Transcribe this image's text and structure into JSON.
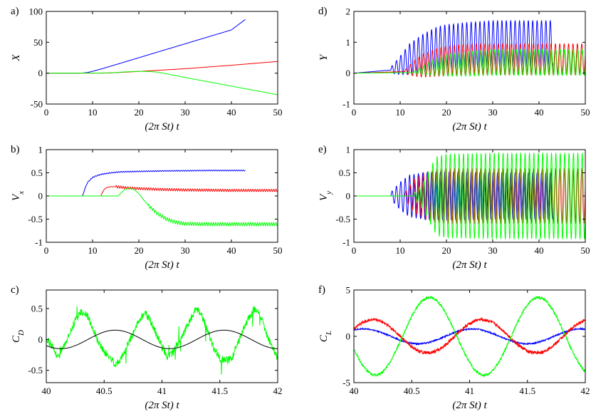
{
  "chart_data": [
    {
      "panel_label": "a)",
      "type": "line",
      "xlabel": "(2π St) t",
      "ylabel": "X",
      "xlim": [
        0,
        50
      ],
      "ylim": [
        -50,
        100
      ],
      "xticks": [
        0,
        10,
        20,
        30,
        40,
        50
      ],
      "yticks": [
        -50,
        0,
        50,
        100
      ],
      "series": [
        {
          "color": "#0000ff",
          "x": [
            0,
            7,
            8,
            9,
            10,
            12,
            14,
            16,
            18,
            20,
            25,
            30,
            35,
            40,
            43
          ],
          "y": [
            0,
            0,
            0.3,
            1.2,
            3,
            7,
            11.5,
            16,
            20.5,
            25,
            36.3,
            47.5,
            58.8,
            70,
            87
          ]
        },
        {
          "color": "#ff0000",
          "x": [
            0,
            12,
            14,
            16,
            20,
            30,
            40,
            50
          ],
          "y": [
            0,
            0,
            0.4,
            1.2,
            2.8,
            7.2,
            12.8,
            19
          ]
        },
        {
          "color": "#00ff00",
          "x": [
            0,
            10,
            14,
            16,
            18,
            20,
            22,
            24,
            26,
            30,
            35,
            40,
            45,
            50
          ],
          "y": [
            0,
            0,
            0.6,
            1.5,
            2.5,
            2.9,
            2.8,
            1.7,
            -1,
            -7,
            -14,
            -21,
            -28,
            -35
          ]
        }
      ]
    },
    {
      "panel_label": "b)",
      "type": "line",
      "xlabel": "(2π St) t",
      "ylabel": "V",
      "ylabel_sub": "x",
      "xlim": [
        0,
        50
      ],
      "ylim": [
        -1,
        1
      ],
      "xticks": [
        0,
        10,
        20,
        30,
        40,
        50
      ],
      "yticks": [
        -1,
        -0.5,
        0,
        0.5,
        1
      ],
      "series": [
        {
          "color": "#0000ff",
          "osc_amp": 0.01,
          "osc_period": 0.5,
          "osc_start": 9,
          "x": [
            0,
            7.8,
            8,
            8.5,
            9,
            10,
            11,
            12,
            14,
            16,
            20,
            25,
            30,
            35,
            43
          ],
          "y": [
            0,
            0,
            0.05,
            0.2,
            0.3,
            0.4,
            0.44,
            0.47,
            0.5,
            0.52,
            0.53,
            0.54,
            0.545,
            0.55,
            0.55
          ]
        },
        {
          "color": "#ff0000",
          "osc_amp": 0.025,
          "osc_period": 0.5,
          "osc_start": 15,
          "x": [
            0,
            11.8,
            12,
            12.5,
            13,
            14,
            15,
            16,
            18,
            20,
            25,
            30,
            40,
            50
          ],
          "y": [
            0,
            0,
            0.05,
            0.14,
            0.18,
            0.2,
            0.2,
            0.19,
            0.17,
            0.16,
            0.14,
            0.13,
            0.12,
            0.12
          ]
        },
        {
          "color": "#00ff00",
          "osc_amp": 0.035,
          "osc_period": 0.5,
          "osc_start": 22,
          "x": [
            0,
            15.5,
            16,
            17,
            18,
            19,
            20,
            21,
            22,
            24,
            26,
            28,
            30,
            35,
            40,
            45,
            50
          ],
          "y": [
            0,
            0,
            0.05,
            0.14,
            0.17,
            0.14,
            0.05,
            -0.08,
            -0.2,
            -0.38,
            -0.5,
            -0.57,
            -0.6,
            -0.61,
            -0.61,
            -0.61,
            -0.61
          ]
        }
      ]
    },
    {
      "panel_label": "c)",
      "type": "line",
      "xlabel": "(2π St) t",
      "ylabel": "C",
      "ylabel_sub": "D",
      "xlim": [
        40,
        42
      ],
      "ylim": [
        -0.7,
        0.8
      ],
      "xticks": [
        40,
        40.5,
        41,
        41.5,
        42
      ],
      "yticks": [
        -0.5,
        0,
        0.5
      ],
      "series": [
        {
          "color": "#00ff00",
          "noise_amp": 0.12,
          "x": [
            40,
            40.05,
            40.1,
            40.15,
            40.2,
            40.25,
            40.3,
            40.35,
            40.4,
            40.45,
            40.5,
            40.55,
            40.6,
            40.65,
            40.7,
            40.75,
            40.8,
            40.85,
            40.9,
            40.95,
            41,
            41.05,
            41.1,
            41.15,
            41.2,
            41.25,
            41.3,
            41.35,
            41.4,
            41.45,
            41.5,
            41.55,
            41.6,
            41.65,
            41.7,
            41.75,
            41.8,
            41.85,
            41.9,
            41.95,
            42
          ],
          "y": [
            0,
            -0.1,
            -0.3,
            -0.1,
            0.1,
            0.3,
            0.45,
            0.4,
            0.2,
            -0.05,
            -0.2,
            -0.3,
            -0.4,
            -0.3,
            -0.1,
            0.1,
            0.3,
            0.45,
            0.3,
            0.1,
            -0.1,
            -0.3,
            -0.2,
            -0.05,
            0.15,
            0.35,
            0.5,
            0.35,
            0.1,
            -0.15,
            -0.3,
            -0.35,
            -0.3,
            -0.1,
            0.15,
            0.35,
            0.5,
            0.4,
            0.1,
            -0.1,
            -0.3
          ]
        },
        {
          "color": "#000000",
          "func": "sin",
          "amp": 0.15,
          "period": 0.94,
          "phase": 40.36,
          "x": [
            40,
            42
          ]
        }
      ]
    },
    {
      "panel_label": "d)",
      "type": "line",
      "xlabel": "(2π St) t",
      "ylabel": "Y",
      "xlim": [
        0,
        50
      ],
      "ylim": [
        -1,
        2
      ],
      "xticks": [
        0,
        10,
        20,
        30,
        40,
        50
      ],
      "yticks": [
        -1,
        0,
        1,
        2
      ],
      "series": [
        {
          "color": "#0000ff",
          "osc_start": 8,
          "osc_period": 0.95,
          "x": [
            0,
            8,
            10,
            12,
            15,
            18,
            20,
            25,
            30,
            35,
            40,
            43
          ],
          "center": [
            0,
            0.1,
            0.25,
            0.45,
            0.65,
            0.8,
            0.85,
            0.9,
            0.95,
            0.95,
            0.95,
            0.95
          ],
          "amp": [
            0,
            0.1,
            0.3,
            0.5,
            0.62,
            0.7,
            0.72,
            0.75,
            0.75,
            0.75,
            0.75,
            0.75
          ]
        },
        {
          "color": "#ff0000",
          "osc_start": 11,
          "osc_period": 0.95,
          "x": [
            0,
            11,
            13,
            15,
            18,
            20,
            25,
            30,
            40,
            50
          ],
          "center": [
            0,
            0.05,
            0.15,
            0.25,
            0.35,
            0.4,
            0.45,
            0.45,
            0.45,
            0.45
          ],
          "amp": [
            0,
            0.05,
            0.25,
            0.38,
            0.45,
            0.48,
            0.5,
            0.5,
            0.5,
            0.5
          ]
        },
        {
          "color": "#00ff00",
          "osc_start": 13,
          "osc_period": 0.95,
          "x": [
            0,
            13,
            15,
            18,
            20,
            25,
            30,
            40,
            50
          ],
          "center": [
            0,
            0.02,
            0.1,
            0.2,
            0.25,
            0.3,
            0.35,
            0.35,
            0.35
          ],
          "amp": [
            0,
            0.04,
            0.15,
            0.28,
            0.35,
            0.4,
            0.42,
            0.42,
            0.42
          ]
        }
      ]
    },
    {
      "panel_label": "e)",
      "type": "line",
      "xlabel": "(2π St) t",
      "ylabel": "V",
      "ylabel_sub": "y",
      "xlim": [
        0,
        50
      ],
      "ylim": [
        -1,
        1
      ],
      "xticks": [
        0,
        10,
        20,
        30,
        40,
        50
      ],
      "yticks": [
        -1,
        -0.5,
        0,
        0.5,
        1
      ],
      "series": [
        {
          "color": "#0000ff",
          "osc_start": 8,
          "osc_period": 0.95,
          "x": [
            0,
            8,
            10,
            12,
            15,
            20,
            30,
            43
          ],
          "center": [
            0,
            0,
            0,
            0,
            0,
            0,
            0,
            0
          ],
          "amp": [
            0,
            0.08,
            0.3,
            0.45,
            0.5,
            0.52,
            0.5,
            0.5
          ]
        },
        {
          "color": "#ff0000",
          "osc_start": 11,
          "osc_period": 0.95,
          "x": [
            0,
            11,
            13,
            15,
            18,
            20,
            30,
            50
          ],
          "center": [
            0,
            0,
            0,
            0,
            0,
            0,
            0,
            0
          ],
          "amp": [
            0,
            0.08,
            0.35,
            0.5,
            0.58,
            0.6,
            0.6,
            0.6
          ]
        },
        {
          "color": "#00ff00",
          "osc_start": 13,
          "osc_period": 0.95,
          "x": [
            0,
            13,
            15,
            17,
            18,
            20,
            30,
            50
          ],
          "center": [
            0,
            0,
            0,
            0,
            0,
            0,
            0,
            0
          ],
          "amp": [
            0,
            0.05,
            0.3,
            0.7,
            0.85,
            0.9,
            0.92,
            0.92
          ]
        }
      ]
    },
    {
      "panel_label": "f)",
      "type": "line",
      "xlabel": "(2π St) t",
      "ylabel": "C",
      "ylabel_sub": "L",
      "xlim": [
        40,
        42
      ],
      "ylim": [
        -5,
        5
      ],
      "xticks": [
        40,
        40.5,
        41,
        41.5,
        42
      ],
      "yticks": [
        -5,
        0,
        5
      ],
      "series": [
        {
          "color": "#0000ff",
          "func": "sin",
          "amp": 0.8,
          "period": 0.94,
          "phase": 39.85,
          "noise_amp": 0.15,
          "x": [
            40,
            42
          ]
        },
        {
          "color": "#ff0000",
          "func": "sin",
          "amp": 1.8,
          "period": 0.94,
          "phase": 39.93,
          "noise_amp": 0.35,
          "x": [
            40,
            42
          ]
        },
        {
          "color": "#00ff00",
          "func": "sin",
          "amp": 4.2,
          "period": 0.94,
          "phase": 40.42,
          "noise_amp": 0.3,
          "x": [
            40,
            42
          ]
        }
      ]
    }
  ]
}
